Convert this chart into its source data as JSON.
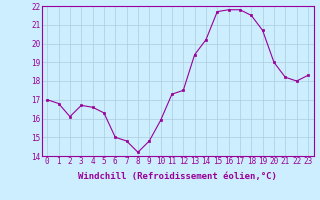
{
  "x": [
    0,
    1,
    2,
    3,
    4,
    5,
    6,
    7,
    8,
    9,
    10,
    11,
    12,
    13,
    14,
    15,
    16,
    17,
    18,
    19,
    20,
    21,
    22,
    23
  ],
  "y": [
    17.0,
    16.8,
    16.1,
    16.7,
    16.6,
    16.3,
    15.0,
    14.8,
    14.2,
    14.8,
    15.9,
    17.3,
    17.5,
    19.4,
    20.2,
    21.7,
    21.8,
    21.8,
    21.5,
    20.7,
    19.0,
    18.2,
    18.0,
    18.3
  ],
  "line_color": "#990099",
  "marker_color": "#990099",
  "bg_color": "#cceeff",
  "grid_color": "#aaccdd",
  "xlabel": "Windchill (Refroidissement éolien,°C)",
  "xlabel_color": "#990099",
  "tick_color": "#990099",
  "spine_color": "#990099",
  "ylim": [
    14,
    22
  ],
  "xlim": [
    -0.5,
    23.5
  ],
  "yticks": [
    14,
    15,
    16,
    17,
    18,
    19,
    20,
    21,
    22
  ],
  "xticks": [
    0,
    1,
    2,
    3,
    4,
    5,
    6,
    7,
    8,
    9,
    10,
    11,
    12,
    13,
    14,
    15,
    16,
    17,
    18,
    19,
    20,
    21,
    22,
    23
  ],
  "font_size": 5.5,
  "label_font_size": 6.5,
  "linewidth": 0.8,
  "markersize": 2.0
}
